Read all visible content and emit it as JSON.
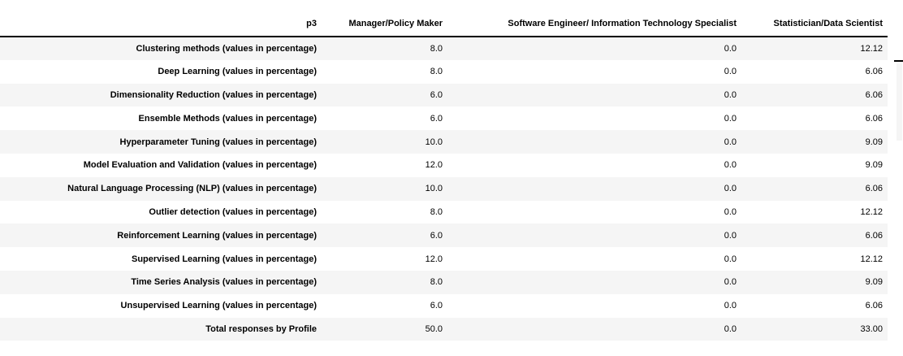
{
  "table": {
    "columns": [
      "p3",
      "Manager/Policy Maker",
      "Software Engineer/ Information Technology Specialist",
      "Statistician/Data Scientist"
    ],
    "rows": [
      {
        "label": "Clustering methods (values in percentage)",
        "values": [
          "8.0",
          "0.0",
          "12.12"
        ]
      },
      {
        "label": "Deep Learning (values in percentage)",
        "values": [
          "8.0",
          "0.0",
          "6.06"
        ]
      },
      {
        "label": "Dimensionality Reduction (values in percentage)",
        "values": [
          "6.0",
          "0.0",
          "6.06"
        ]
      },
      {
        "label": "Ensemble Methods (values in percentage)",
        "values": [
          "6.0",
          "0.0",
          "6.06"
        ]
      },
      {
        "label": "Hyperparameter Tuning (values in percentage)",
        "values": [
          "10.0",
          "0.0",
          "9.09"
        ]
      },
      {
        "label": "Model Evaluation and Validation (values in percentage)",
        "values": [
          "12.0",
          "0.0",
          "9.09"
        ]
      },
      {
        "label": "Natural Language Processing (NLP) (values in percentage)",
        "values": [
          "10.0",
          "0.0",
          "6.06"
        ]
      },
      {
        "label": "Outlier detection (values in percentage)",
        "values": [
          "8.0",
          "0.0",
          "12.12"
        ]
      },
      {
        "label": "Reinforcement Learning (values in percentage)",
        "values": [
          "6.0",
          "0.0",
          "6.06"
        ]
      },
      {
        "label": "Supervised Learning (values in percentage)",
        "values": [
          "12.0",
          "0.0",
          "12.12"
        ]
      },
      {
        "label": "Time Series Analysis (values in percentage)",
        "values": [
          "8.0",
          "0.0",
          "9.09"
        ]
      },
      {
        "label": "Unsupervised Learning (values in percentage)",
        "values": [
          "6.0",
          "0.0",
          "6.06"
        ]
      },
      {
        "label": "Total responses by Profile",
        "values": [
          "50.0",
          "0.0",
          "33.00"
        ]
      }
    ],
    "colors": {
      "stripe": "#f5f5f5",
      "header_border": "#000000",
      "text": "#000000",
      "background": "#ffffff"
    }
  },
  "chart_data": {
    "type": "table",
    "title": "p3",
    "columns": [
      "p3",
      "Manager/Policy Maker",
      "Software Engineer/ Information Technology Specialist",
      "Statistician/Data Scientist"
    ],
    "rows": [
      [
        "Clustering methods (values in percentage)",
        8.0,
        0.0,
        12.12
      ],
      [
        "Deep Learning (values in percentage)",
        8.0,
        0.0,
        6.06
      ],
      [
        "Dimensionality Reduction (values in percentage)",
        6.0,
        0.0,
        6.06
      ],
      [
        "Ensemble Methods (values in percentage)",
        6.0,
        0.0,
        6.06
      ],
      [
        "Hyperparameter Tuning (values in percentage)",
        10.0,
        0.0,
        9.09
      ],
      [
        "Model Evaluation and Validation (values in percentage)",
        12.0,
        0.0,
        9.09
      ],
      [
        "Natural Language Processing (NLP) (values in percentage)",
        10.0,
        0.0,
        6.06
      ],
      [
        "Outlier detection (values in percentage)",
        8.0,
        0.0,
        12.12
      ],
      [
        "Reinforcement Learning (values in percentage)",
        6.0,
        0.0,
        6.06
      ],
      [
        "Supervised Learning (values in percentage)",
        12.0,
        0.0,
        12.12
      ],
      [
        "Time Series Analysis (values in percentage)",
        8.0,
        0.0,
        9.09
      ],
      [
        "Unsupervised Learning (values in percentage)",
        6.0,
        0.0,
        6.06
      ],
      [
        "Total responses by Profile",
        50.0,
        0.0,
        33.0
      ]
    ],
    "layout": {
      "zebra_striping": true,
      "label_column_alignment": "right",
      "value_alignment": "right",
      "header_bottom_border": true
    }
  }
}
